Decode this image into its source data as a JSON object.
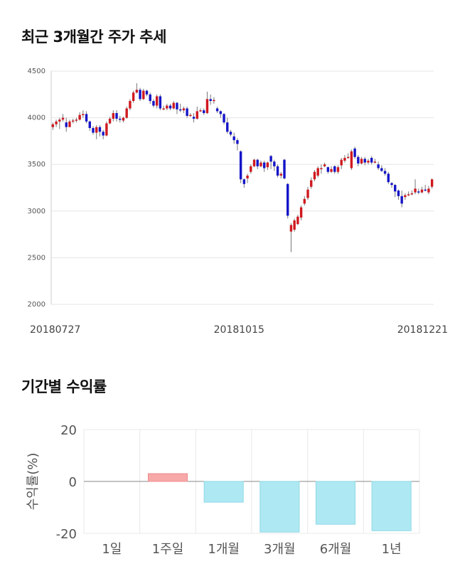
{
  "sections": {
    "price_title": "최근 3개월간 주가 추세",
    "returns_title": "기간별 수익률"
  },
  "chart_data": [
    {
      "type": "candlestick",
      "title": "최근 3개월간 주가 추세",
      "ylim": [
        2000,
        4500
      ],
      "yticks": [
        4500,
        4000,
        3500,
        3000,
        2500,
        2000
      ],
      "x_tick_labels": [
        "20180727",
        "20181015",
        "20181221"
      ],
      "grid": true,
      "colors": {
        "up": "#d0191f",
        "down": "#1414c8"
      },
      "candles": [
        [
          3900,
          3930,
          3870,
          3950
        ],
        [
          3930,
          3960,
          3900,
          3980
        ],
        [
          3960,
          3980,
          3880,
          4000
        ],
        [
          3980,
          4000,
          3960,
          4040
        ],
        [
          3950,
          3900,
          3850,
          4000
        ],
        [
          3900,
          3960,
          3900,
          3980
        ],
        [
          3960,
          3970,
          3940,
          3990
        ],
        [
          3970,
          3980,
          3950,
          4000
        ],
        [
          3980,
          4030,
          3970,
          4060
        ],
        [
          4030,
          4040,
          4000,
          4080
        ],
        [
          4040,
          3960,
          3940,
          4070
        ],
        [
          3960,
          3890,
          3860,
          3970
        ],
        [
          3890,
          3840,
          3820,
          3910
        ],
        [
          3840,
          3900,
          3770,
          3920
        ],
        [
          3900,
          3850,
          3800,
          3920
        ],
        [
          3850,
          3810,
          3770,
          3870
        ],
        [
          3810,
          3940,
          3800,
          3960
        ],
        [
          3940,
          3990,
          3930,
          4010
        ],
        [
          3990,
          4050,
          3960,
          4080
        ],
        [
          4050,
          3990,
          3960,
          4080
        ],
        [
          3990,
          3980,
          3950,
          4020
        ],
        [
          3970,
          4000,
          3950,
          4010
        ],
        [
          4000,
          4100,
          3990,
          4120
        ],
        [
          4100,
          4180,
          4080,
          4200
        ],
        [
          4180,
          4270,
          4160,
          4290
        ],
        [
          4270,
          4300,
          4260,
          4370
        ],
        [
          4300,
          4200,
          4180,
          4320
        ],
        [
          4200,
          4290,
          4190,
          4310
        ],
        [
          4290,
          4250,
          4230,
          4300
        ],
        [
          4250,
          4180,
          4150,
          4270
        ],
        [
          4180,
          4130,
          4110,
          4200
        ],
        [
          4130,
          4230,
          4100,
          4250
        ],
        [
          4230,
          4100,
          4080,
          4250
        ],
        [
          4100,
          4100,
          4080,
          4130
        ],
        [
          4100,
          4130,
          4080,
          4150
        ],
        [
          4130,
          4100,
          4080,
          4150
        ],
        [
          4100,
          4160,
          4090,
          4180
        ],
        [
          4160,
          4090,
          4040,
          4170
        ],
        [
          4090,
          4080,
          4060,
          4150
        ],
        [
          4080,
          4100,
          4050,
          4120
        ],
        [
          4100,
          4020,
          4000,
          4120
        ],
        [
          4020,
          4030,
          4010,
          4050
        ],
        [
          4010,
          3990,
          3950,
          4050
        ],
        [
          3990,
          4070,
          3980,
          4120
        ],
        [
          4070,
          4080,
          4060,
          4100
        ],
        [
          4080,
          4050,
          4030,
          4100
        ],
        [
          4050,
          4200,
          4040,
          4280
        ],
        [
          4200,
          4180,
          4140,
          4250
        ],
        [
          4180,
          4190,
          4150,
          4220
        ],
        [
          4100,
          4070,
          4050,
          4120
        ],
        [
          4070,
          4040,
          4000,
          4080
        ],
        [
          4040,
          3950,
          3930,
          4050
        ],
        [
          3950,
          3850,
          3830,
          4000
        ],
        [
          3850,
          3820,
          3800,
          3870
        ],
        [
          3800,
          3760,
          3720,
          3840
        ],
        [
          3760,
          3720,
          3650,
          3780
        ],
        [
          3640,
          3340,
          3300,
          3650
        ],
        [
          3340,
          3290,
          3250,
          3350
        ],
        [
          3350,
          3380,
          3300,
          3400
        ],
        [
          3420,
          3480,
          3400,
          3500
        ],
        [
          3480,
          3550,
          3470,
          3560
        ],
        [
          3550,
          3480,
          3450,
          3560
        ],
        [
          3480,
          3520,
          3470,
          3540
        ],
        [
          3520,
          3460,
          3420,
          3540
        ],
        [
          3470,
          3520,
          3440,
          3530
        ],
        [
          3590,
          3530,
          3450,
          3600
        ],
        [
          3530,
          3480,
          3430,
          3550
        ],
        [
          3480,
          3380,
          3360,
          3500
        ],
        [
          3380,
          3400,
          3350,
          3420
        ],
        [
          3550,
          3350,
          3340,
          3560
        ],
        [
          3290,
          2950,
          2920,
          3300
        ],
        [
          2780,
          2850,
          2560,
          2870
        ],
        [
          2800,
          2900,
          2780,
          2920
        ],
        [
          2860,
          2940,
          2850,
          2960
        ],
        [
          2930,
          3040,
          2900,
          3060
        ],
        [
          3080,
          3130,
          3060,
          3160
        ],
        [
          3140,
          3230,
          3120,
          3260
        ],
        [
          3260,
          3330,
          3240,
          3360
        ],
        [
          3340,
          3420,
          3320,
          3440
        ],
        [
          3380,
          3460,
          3360,
          3480
        ],
        [
          3450,
          3460,
          3400,
          3500
        ],
        [
          3480,
          3500,
          3470,
          3520
        ],
        [
          3470,
          3420,
          3400,
          3480
        ],
        [
          3420,
          3450,
          3410,
          3480
        ],
        [
          3480,
          3420,
          3400,
          3490
        ],
        [
          3420,
          3470,
          3400,
          3490
        ],
        [
          3490,
          3550,
          3450,
          3570
        ],
        [
          3540,
          3570,
          3520,
          3600
        ],
        [
          3570,
          3580,
          3560,
          3620
        ],
        [
          3460,
          3640,
          3440,
          3660
        ],
        [
          3670,
          3580,
          3560,
          3690
        ],
        [
          3580,
          3510,
          3480,
          3600
        ],
        [
          3510,
          3560,
          3500,
          3580
        ],
        [
          3560,
          3520,
          3490,
          3580
        ],
        [
          3520,
          3540,
          3500,
          3560
        ],
        [
          3570,
          3520,
          3500,
          3590
        ],
        [
          3520,
          3530,
          3510,
          3560
        ],
        [
          3500,
          3460,
          3440,
          3530
        ],
        [
          3460,
          3430,
          3420,
          3490
        ],
        [
          3430,
          3400,
          3380,
          3460
        ],
        [
          3400,
          3310,
          3290,
          3420
        ],
        [
          3300,
          3280,
          3250,
          3310
        ],
        [
          3280,
          3210,
          3150,
          3290
        ],
        [
          3220,
          3160,
          3120,
          3230
        ],
        [
          3160,
          3080,
          3040,
          3220
        ],
        [
          3150,
          3170,
          3120,
          3190
        ],
        [
          3170,
          3180,
          3160,
          3210
        ],
        [
          3180,
          3190,
          3170,
          3220
        ],
        [
          3200,
          3240,
          3180,
          3340
        ],
        [
          3210,
          3200,
          3180,
          3240
        ],
        [
          3200,
          3230,
          3190,
          3260
        ],
        [
          3230,
          3220,
          3210,
          3280
        ],
        [
          3200,
          3240,
          3180,
          3270
        ],
        [
          3260,
          3340,
          3240,
          3350
        ]
      ]
    },
    {
      "type": "bar",
      "title": "기간별 수익률",
      "categories": [
        "1일",
        "1주일",
        "1개월",
        "3개월",
        "6개월",
        "1년"
      ],
      "values": [
        0,
        3,
        -8,
        -19.5,
        -16.5,
        -19
      ],
      "ylabel": "수익률(%)",
      "ylim": [
        -20,
        20
      ],
      "yticks": [
        20,
        0,
        -20
      ],
      "colors": {
        "positive": "#f7a8a8",
        "negative": "#aee9f3",
        "positive_edge": "#f08c8c",
        "negative_edge": "#8fd8e6"
      },
      "grid": true
    }
  ]
}
